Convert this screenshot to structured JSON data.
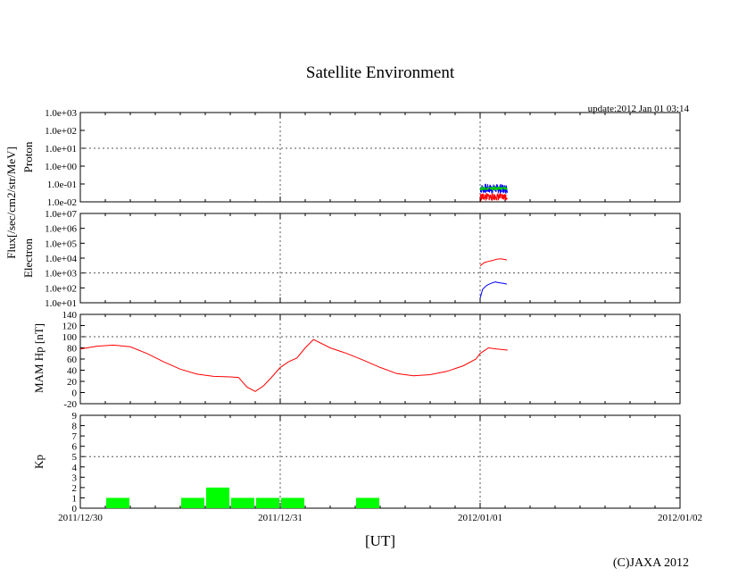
{
  "title": "Satellite Environment",
  "update": "update:2012 Jan 01 03:14",
  "copyright": "(C)JAXA 2012",
  "xlabel": "[UT]",
  "flux_label": "Flux[/sec/cm2/str/MeV]",
  "x_ticks": [
    "2011/12/30",
    "2011/12/31",
    "2012/01/01",
    "2012/01/02"
  ],
  "chart_data": [
    {
      "type": "line",
      "panel": "proton",
      "ylabel": "Proton",
      "yscale": "log",
      "ylim": [
        0.01,
        1000
      ],
      "y_ticks": [
        "1.0e-02",
        "1.0e-01",
        "1.0e+00",
        "1.0e+01",
        "1.0e+02",
        "1.0e+03"
      ],
      "grid": "dotted at 2011/12/31, 2012/01/01 and 1.0e+01",
      "series": [
        {
          "color": "#0000ff",
          "x_start_hours": 48.0,
          "x_end_hours": 51.2,
          "low": 0.03,
          "high": 0.1
        },
        {
          "color": "#00cc00",
          "x_start_hours": 48.0,
          "x_end_hours": 51.2,
          "low": 0.045,
          "high": 0.07
        },
        {
          "color": "#ff0000",
          "x_start_hours": 48.0,
          "x_end_hours": 51.2,
          "low": 0.012,
          "high": 0.03
        }
      ]
    },
    {
      "type": "line",
      "panel": "electron",
      "ylabel": "Electron",
      "yscale": "log",
      "ylim": [
        10,
        10000000
      ],
      "y_ticks": [
        "1.0e+01",
        "1.0e+02",
        "1.0e+03",
        "1.0e+04",
        "1.0e+05",
        "1.0e+06",
        "1.0e+07"
      ],
      "grid": "dotted at 2011/12/31, 2012/01/01 and 1.0e+03",
      "series": [
        {
          "color": "#ff0000",
          "x_hours": [
            48.0,
            48.5,
            49.0,
            49.5,
            50.0,
            50.5,
            51.0,
            51.2
          ],
          "y": [
            3000,
            5000,
            6000,
            7000,
            8500,
            9000,
            8000,
            7500
          ]
        },
        {
          "color": "#0000ff",
          "x_hours": [
            48.0,
            48.3,
            48.8,
            49.3,
            49.8,
            50.3,
            50.8,
            51.2
          ],
          "y": [
            20,
            80,
            150,
            200,
            250,
            220,
            200,
            180
          ]
        }
      ]
    },
    {
      "type": "line",
      "panel": "mam_hp",
      "ylabel": "MAM Hp [nT]",
      "ylim": [
        -20,
        140
      ],
      "y_ticks": [
        -20,
        0,
        20,
        40,
        60,
        80,
        100,
        120,
        140
      ],
      "grid": "dotted at 2011/12/31, 2012/01/01 and 100",
      "series": [
        {
          "color": "#ff0000",
          "x_hours": [
            0,
            2,
            4,
            6,
            8,
            10,
            12,
            14,
            16,
            18,
            19,
            20,
            21,
            22,
            23,
            24,
            25,
            26,
            27,
            28,
            30,
            32,
            34,
            36,
            38,
            40,
            42,
            44,
            46,
            47.5,
            48,
            49,
            50,
            51.3
          ],
          "y": [
            78,
            83,
            85,
            82,
            70,
            55,
            42,
            33,
            29,
            28,
            27,
            10,
            2,
            12,
            28,
            45,
            55,
            62,
            80,
            95,
            80,
            70,
            58,
            45,
            34,
            30,
            32,
            38,
            48,
            60,
            70,
            80,
            78,
            76
          ]
        }
      ]
    },
    {
      "type": "bar",
      "panel": "kp",
      "ylabel": "Kp",
      "ylim": [
        0,
        9
      ],
      "y_ticks": [
        0,
        1,
        2,
        3,
        4,
        5,
        6,
        7,
        8,
        9
      ],
      "grid": "dotted at 2011/12/31, 2012/01/01 and 5",
      "bar_color": "#00ff00",
      "bar_width_hours": 3,
      "bars": [
        {
          "start_hours": 3,
          "value": 1
        },
        {
          "start_hours": 12,
          "value": 1
        },
        {
          "start_hours": 15,
          "value": 2
        },
        {
          "start_hours": 18,
          "value": 1
        },
        {
          "start_hours": 21,
          "value": 1
        },
        {
          "start_hours": 24,
          "value": 1
        },
        {
          "start_hours": 33,
          "value": 1
        }
      ]
    }
  ]
}
